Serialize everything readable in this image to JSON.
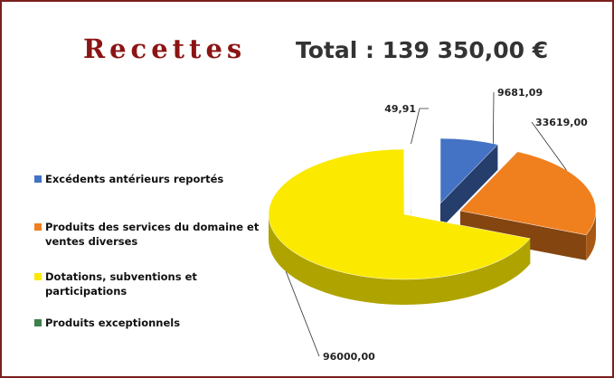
{
  "chart_data": {
    "type": "pie",
    "title": "Recettes",
    "subtitle": "Total : 139 350,00 €",
    "categories": [
      "Excédents antérieurs reportés",
      "Produits des services du domaine et ventes diverses",
      "Dotations, subventions et participations",
      "Produits exceptionnels"
    ],
    "values": [
      9681.09,
      33619,
      96000,
      49.91
    ],
    "value_labels": [
      "9681,09",
      "33619,00",
      "96000,00",
      "49,91"
    ],
    "colors": [
      "#4472c4",
      "#f07f1e",
      "#fbe900",
      "#3e7f4a"
    ]
  }
}
